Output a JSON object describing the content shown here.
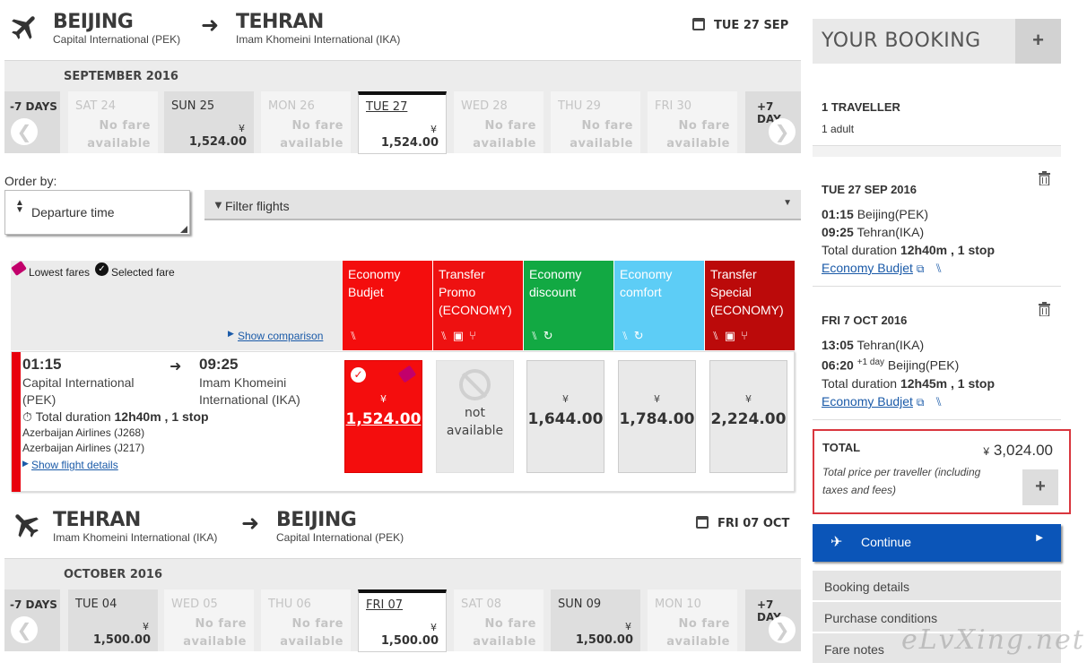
{
  "outbound": {
    "from_city": "BEIJING",
    "from_airport": "Capital International (PEK)",
    "to_city": "TEHRAN",
    "to_airport": "Imam Khomeini International (IKA)",
    "date": "TUE 27 SEP",
    "month": "SEPTEMBER 2016",
    "prev_label": "-7 DAYS",
    "next_label": "+7 DAY",
    "days": [
      {
        "name": "SAT 24",
        "line1": "No fare",
        "line2": "available"
      },
      {
        "name": "SUN 25",
        "currency": "¥",
        "price": "1,524.00"
      },
      {
        "name": "MON 26",
        "line1": "No fare",
        "line2": "available"
      },
      {
        "name": "TUE 27",
        "currency": "¥",
        "price": "1,524.00"
      },
      {
        "name": "WED 28",
        "line1": "No fare",
        "line2": "available"
      },
      {
        "name": "THU 29",
        "line1": "No fare",
        "line2": "available"
      },
      {
        "name": "FRI 30",
        "line1": "No fare",
        "line2": "available"
      }
    ]
  },
  "order_by": {
    "label": "Order by:",
    "value": "Departure time",
    "filter_label": "Filter flights"
  },
  "legend": {
    "lowest": "Lowest fares",
    "selected": "Selected fare",
    "show_comparison": "Show comparison"
  },
  "fare_families": [
    {
      "name": "Economy Budjet",
      "color": "#f40d0d"
    },
    {
      "name": "Transfer Promo (ECONOMY)",
      "color": "#ee1111"
    },
    {
      "name": "Economy discount",
      "color": "#12a943"
    },
    {
      "name": "Economy comfort",
      "color": "#5dcdf6"
    },
    {
      "name": "Transfer Special (ECONOMY)",
      "color": "#bb0a0a"
    }
  ],
  "flight": {
    "dep_time": "01:15",
    "dep_airport": "Capital International (PEK)",
    "arr_time": "09:25",
    "arr_airport": "Imam Khomeini International (IKA)",
    "duration_label": "Total duration",
    "duration": "12h40m , 1 stop",
    "carrier1": "Azerbaijan Airlines (J268)",
    "carrier2": "Azerbaijan Airlines (J217)",
    "details_link": "Show flight details",
    "fares": [
      {
        "currency": "¥",
        "amount": "1,524.00",
        "selected": true
      },
      {
        "line1": "not",
        "line2": "available"
      },
      {
        "currency": "¥",
        "amount": "1,644.00"
      },
      {
        "currency": "¥",
        "amount": "1,784.00"
      },
      {
        "currency": "¥",
        "amount": "2,224.00"
      }
    ]
  },
  "inbound": {
    "from_city": "TEHRAN",
    "from_airport": "Imam Khomeini International (IKA)",
    "to_city": "BEIJING",
    "to_airport": "Capital International (PEK)",
    "date": "FRI 07 OCT",
    "month": "OCTOBER 2016",
    "prev_label": "-7 DAYS",
    "next_label": "+7 DAY",
    "days": [
      {
        "name": "TUE 04",
        "currency": "¥",
        "price": "1,500.00"
      },
      {
        "name": "WED 05",
        "line1": "No fare",
        "line2": "available"
      },
      {
        "name": "THU 06",
        "line1": "No fare",
        "line2": "available"
      },
      {
        "name": "FRI 07",
        "currency": "¥",
        "price": "1,500.00"
      },
      {
        "name": "SAT 08",
        "line1": "No fare",
        "line2": "available"
      },
      {
        "name": "SUN 09",
        "currency": "¥",
        "price": "1,500.00"
      },
      {
        "name": "MON 10",
        "line1": "No fare",
        "line2": "available"
      }
    ]
  },
  "booking": {
    "title": "YOUR BOOKING",
    "travellers": "1 TRAVELLER",
    "adults": "1 adult",
    "leg1": {
      "date": "TUE 27 SEP 2016",
      "dep_time": "01:15",
      "dep_place": "Beijing(PEK)",
      "arr_time": "09:25",
      "arr_place": "Tehran(IKA)",
      "duration_label": "Total duration",
      "duration": "12h40m , 1 stop",
      "fare": "Economy Budjet"
    },
    "leg2": {
      "date": "FRI 7 OCT 2016",
      "dep_time": "13:05",
      "dep_place": "Tehran(IKA)",
      "arr_time": "06:20",
      "arr_sup": "+1 day",
      "arr_place": "Beijing(PEK)",
      "duration_label": "Total duration",
      "duration": "12h45m , 1 stop",
      "fare": "Economy Budjet"
    },
    "total_label": "TOTAL",
    "total_currency": "¥",
    "total_amount": "3,024.00",
    "total_note": "Total price per traveller (including taxes and fees)",
    "continue": "Continue",
    "tabs": [
      "Booking details",
      "Purchase conditions",
      "Fare notes"
    ]
  },
  "watermark": "eLvXing.net"
}
